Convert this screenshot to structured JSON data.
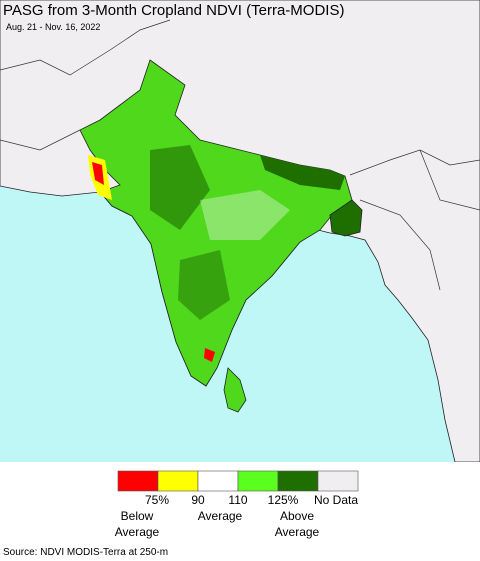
{
  "header": {
    "title": "PASG from 3-Month Cropland NDVI (Terra-MODIS)",
    "subtitle": "Aug. 21 - Nov. 16, 2022"
  },
  "legend": {
    "colors": [
      "#ff0000",
      "#ffff00",
      "#ffffff",
      "#5aff1e",
      "#1e6e00",
      "#f0eef0"
    ],
    "tick_labels": [
      "75%",
      "90",
      "110",
      "125%",
      "No Data"
    ],
    "group_labels": [
      [
        "Below",
        "Average"
      ],
      [
        "Average"
      ],
      [
        "Above",
        "Average"
      ]
    ]
  },
  "source": "Source: NDVI MODIS-Terra at 250-m"
}
